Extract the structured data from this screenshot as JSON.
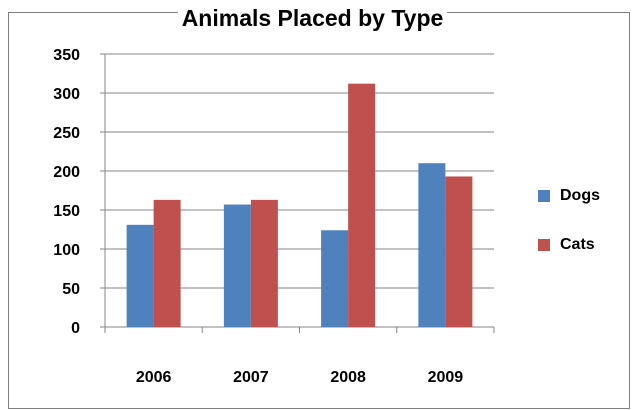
{
  "chart_data": {
    "type": "bar",
    "title": "Animals Placed by Type",
    "categories": [
      "2006",
      "2007",
      "2008",
      "2009"
    ],
    "series": [
      {
        "name": "Dogs",
        "values": [
          131,
          157,
          124,
          210
        ],
        "color": "#4F81BD"
      },
      {
        "name": "Cats",
        "values": [
          163,
          163,
          312,
          193
        ],
        "color": "#C0504D"
      }
    ],
    "ylim": [
      0,
      350
    ],
    "yticks": [
      0,
      50,
      100,
      150,
      200,
      250,
      300,
      350
    ],
    "grid": true,
    "legend_position": "right"
  }
}
